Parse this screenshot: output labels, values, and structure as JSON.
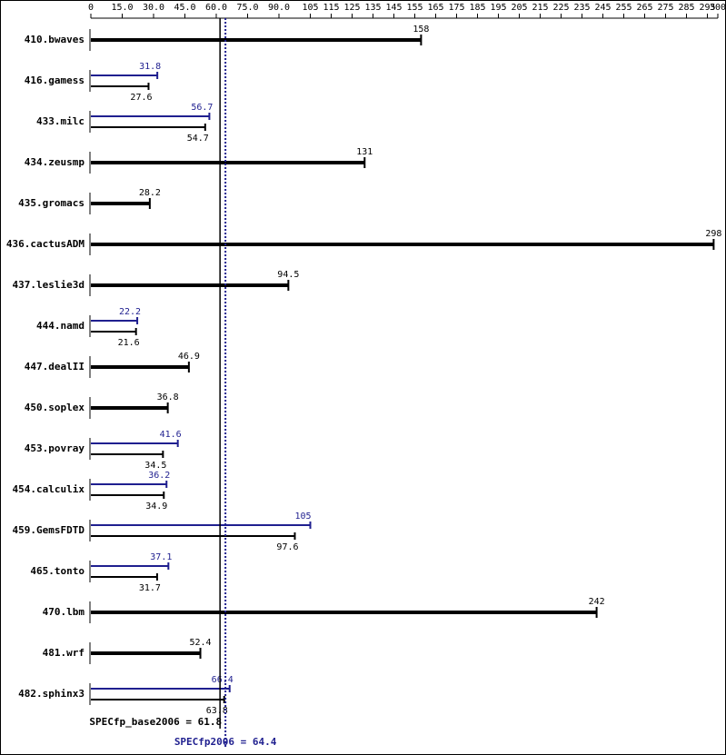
{
  "chart_data": {
    "type": "spec-bar",
    "categories": [
      "410.bwaves",
      "416.gamess",
      "433.milc",
      "434.zeusmp",
      "435.gromacs",
      "436.cactusADM",
      "437.leslie3d",
      "444.namd",
      "447.dealII",
      "450.soplex",
      "453.povray",
      "454.calculix",
      "459.GemsFDTD",
      "465.tonto",
      "470.lbm",
      "481.wrf",
      "482.sphinx3"
    ],
    "series": [
      {
        "color": "#000000",
        "values": [
          158,
          27.6,
          54.7,
          131,
          28.2,
          298,
          94.5,
          21.6,
          46.9,
          36.8,
          34.5,
          34.9,
          97.6,
          31.7,
          242,
          52.4,
          63.8
        ]
      },
      {
        "color": "#1f1f8f",
        "values": [
          null,
          31.8,
          56.7,
          null,
          null,
          null,
          null,
          22.2,
          null,
          null,
          41.6,
          36.2,
          105,
          37.1,
          null,
          null,
          66.4
        ]
      }
    ],
    "xlim": [
      0,
      300
    ],
    "xticks": [
      0,
      {
        "value": 15,
        "label": "15.0"
      },
      {
        "value": 30,
        "label": "30.0"
      },
      {
        "value": 45,
        "label": "45.0"
      },
      {
        "value": 60,
        "label": "60.0"
      },
      {
        "value": 75,
        "label": "75.0"
      },
      {
        "value": 90,
        "label": "90.0"
      },
      105,
      115,
      125,
      135,
      145,
      155,
      165,
      175,
      185,
      195,
      205,
      215,
      225,
      235,
      245,
      255,
      265,
      275,
      285,
      295,
      300
    ],
    "reference_lines": [
      {
        "value": 61.8,
        "label": "SPECfp_base2006 = 61.8",
        "color": "#000000"
      },
      {
        "value": 64.4,
        "label": "SPECfp2006 = 64.4",
        "color": "#1f1f8f"
      }
    ]
  }
}
